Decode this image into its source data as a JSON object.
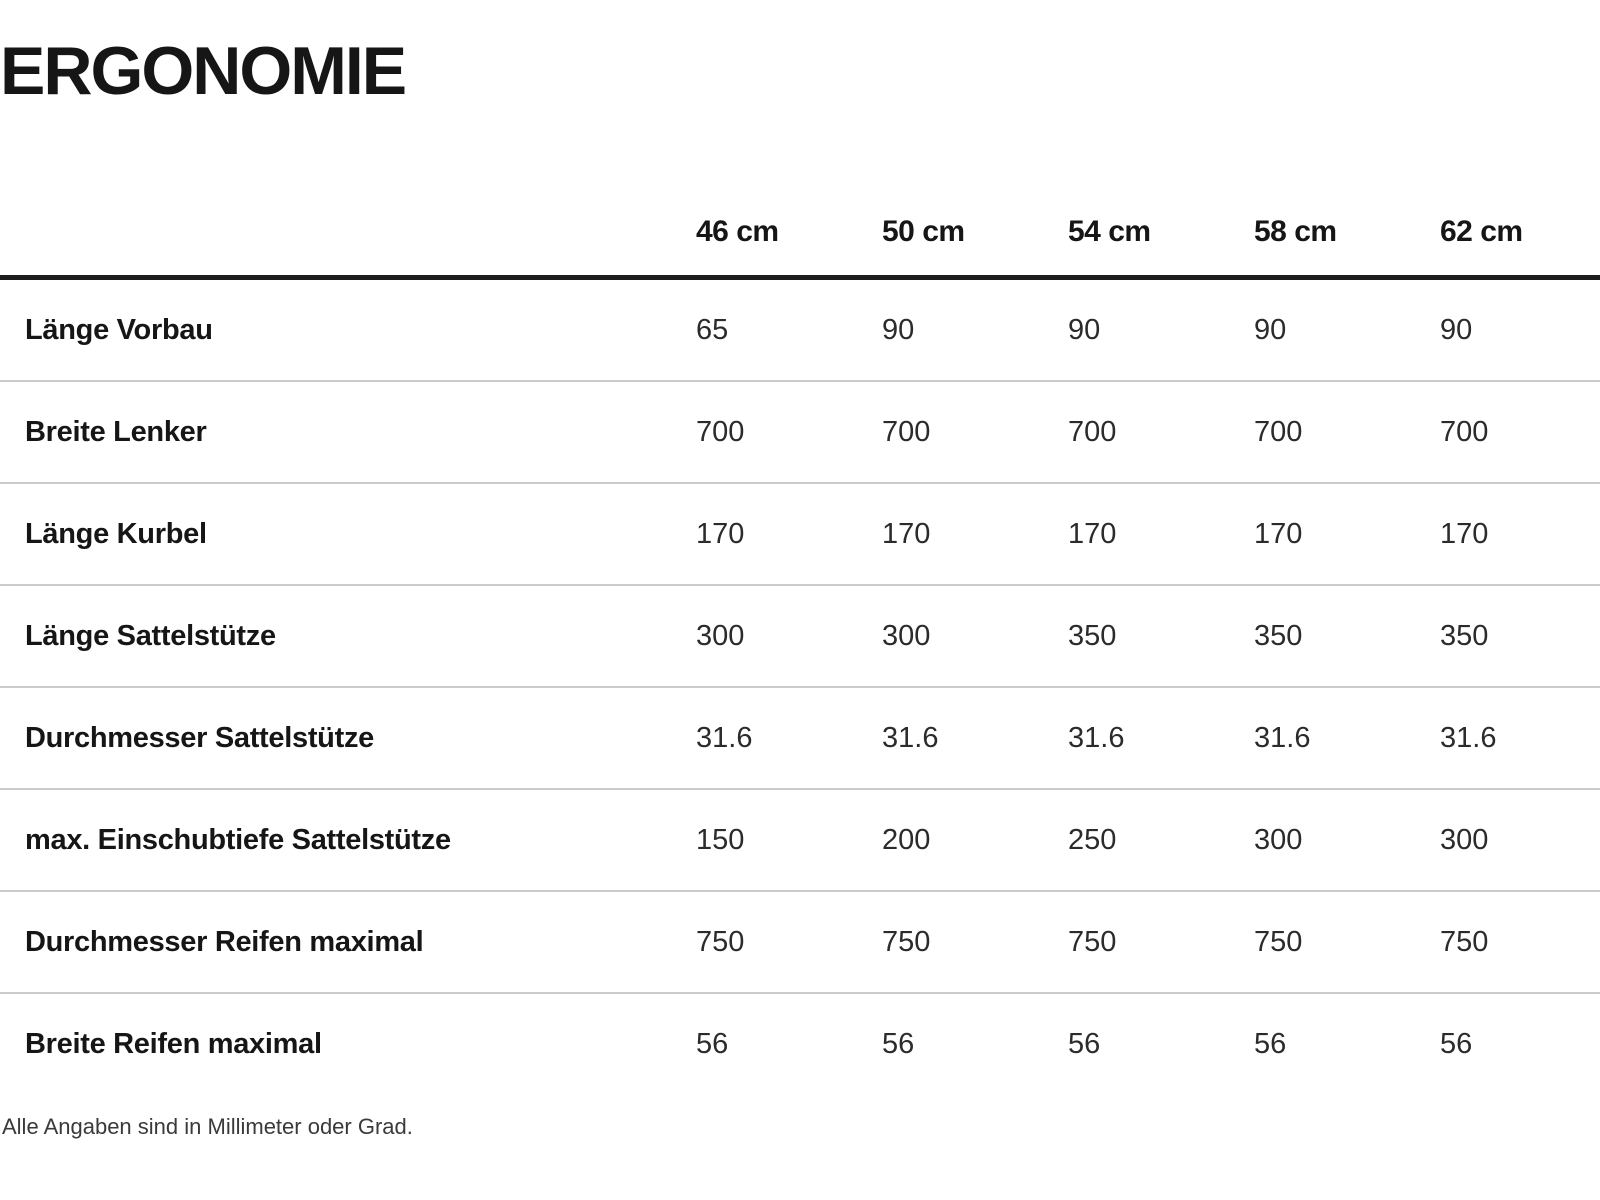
{
  "page": {
    "title": "ERGONOMIE",
    "footnote": "Alle Angaben sind in Millimeter oder Grad."
  },
  "colors": {
    "background": "#ffffff",
    "heading_text": "#161616",
    "value_text": "#2b2b2b",
    "heavy_rule": "#1d1d1d",
    "row_rule": "#cbcbcb",
    "footnote_text": "#3a3a3a"
  },
  "chart_data": {
    "type": "table",
    "title": "ERGONOMIE",
    "columns": [
      "46 cm",
      "50 cm",
      "54 cm",
      "58 cm",
      "62 cm"
    ],
    "rows": [
      {
        "label": "Länge Vorbau",
        "values": [
          "65",
          "90",
          "90",
          "90",
          "90"
        ]
      },
      {
        "label": "Breite Lenker",
        "values": [
          "700",
          "700",
          "700",
          "700",
          "700"
        ]
      },
      {
        "label": "Länge Kurbel",
        "values": [
          "170",
          "170",
          "170",
          "170",
          "170"
        ]
      },
      {
        "label": "Länge Sattelstütze",
        "values": [
          "300",
          "300",
          "350",
          "350",
          "350"
        ]
      },
      {
        "label": "Durchmesser Sattelstütze",
        "values": [
          "31.6",
          "31.6",
          "31.6",
          "31.6",
          "31.6"
        ]
      },
      {
        "label": "max. Einschubtiefe Sattelstütze",
        "values": [
          "150",
          "200",
          "250",
          "300",
          "300"
        ]
      },
      {
        "label": "Durchmesser Reifen maximal",
        "values": [
          "750",
          "750",
          "750",
          "750",
          "750"
        ]
      },
      {
        "label": "Breite Reifen maximal",
        "values": [
          "56",
          "56",
          "56",
          "56",
          "56"
        ]
      }
    ],
    "footnote": "Alle Angaben sind in Millimeter oder Grad."
  }
}
